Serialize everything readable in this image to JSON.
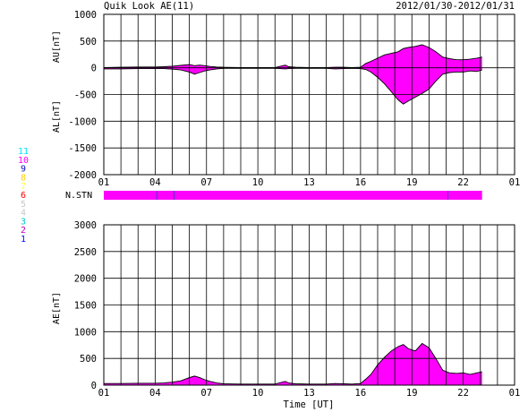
{
  "header": {
    "title": "Quik Look AE(11)",
    "date_range": "2012/01/30-2012/01/31"
  },
  "colors": {
    "fill": "#ff00ff",
    "line": "#000000",
    "grid": "#000000",
    "bg": "#ffffff"
  },
  "legend": {
    "items": [
      {
        "label": "11",
        "color": "#00e5ff"
      },
      {
        "label": "10",
        "color": "#ff00ff"
      },
      {
        "label": "9",
        "color": "#1010c0"
      },
      {
        "label": "8",
        "color": "#ffd000"
      },
      {
        "label": "7",
        "color": "#ffff40"
      },
      {
        "label": "6",
        "color": "#ff0000"
      },
      {
        "label": "5",
        "color": "#c8c8c8"
      },
      {
        "label": "4",
        "color": "#c8c8c8"
      },
      {
        "label": "3",
        "color": "#00c8c8"
      },
      {
        "label": "2",
        "color": "#c000c0"
      },
      {
        "label": "1",
        "color": "#0000ff"
      }
    ]
  },
  "stn_label": "N.STN",
  "stn_bar": {
    "start_ut": 1,
    "end_ut": 23.1,
    "markers_ut": [
      4.1,
      5.1,
      21.1
    ]
  },
  "xlabel": "Time [UT]",
  "chart_data": [
    {
      "type": "area",
      "name": "AU/AL panel",
      "ylabel_upper": "AU[nT]",
      "ylabel_lower": "AL[nT]",
      "ylim": [
        -2000,
        1000
      ],
      "yticks": [
        1000,
        500,
        0,
        -500,
        -1000,
        -1500,
        -2000
      ],
      "xlim": [
        1,
        25
      ],
      "xticks": [
        "01",
        "04",
        "07",
        "10",
        "13",
        "16",
        "19",
        "22",
        "01"
      ],
      "grid": true,
      "x_ut": [
        1.0,
        2.0,
        3.0,
        4.0,
        4.5,
        5.0,
        5.5,
        6.0,
        6.3,
        6.6,
        6.9,
        7.2,
        7.6,
        8.0,
        9.0,
        10.0,
        11.0,
        11.6,
        11.8,
        12.2,
        13.0,
        14.0,
        14.5,
        15.0,
        15.5,
        16.0,
        16.3,
        16.6,
        17.0,
        17.4,
        17.8,
        18.2,
        18.5,
        18.8,
        19.2,
        19.6,
        20.0,
        20.4,
        20.8,
        21.2,
        21.6,
        22.0,
        22.4,
        22.8,
        23.1
      ],
      "au": [
        5,
        10,
        15,
        15,
        20,
        30,
        45,
        60,
        40,
        50,
        40,
        25,
        15,
        10,
        5,
        5,
        5,
        50,
        20,
        10,
        5,
        5,
        10,
        10,
        5,
        10,
        80,
        120,
        180,
        240,
        270,
        300,
        360,
        380,
        400,
        430,
        380,
        300,
        200,
        170,
        150,
        150,
        160,
        180,
        200
      ],
      "al": [
        -20,
        -20,
        -15,
        -15,
        -15,
        -25,
        -40,
        -80,
        -120,
        -90,
        -60,
        -40,
        -20,
        -10,
        -10,
        -10,
        -10,
        -20,
        -15,
        -10,
        -10,
        -10,
        -20,
        -15,
        -10,
        -15,
        -30,
        -80,
        -180,
        -300,
        -450,
        -600,
        -680,
        -620,
        -550,
        -480,
        -400,
        -250,
        -120,
        -90,
        -80,
        -80,
        -60,
        -70,
        -40
      ]
    },
    {
      "type": "area",
      "name": "AE panel",
      "ylabel": "AE[nT]",
      "ylim": [
        0,
        3000
      ],
      "yticks": [
        3000,
        2500,
        2000,
        1500,
        1000,
        500,
        0
      ],
      "xlim": [
        1,
        25
      ],
      "xticks": [
        "01",
        "04",
        "07",
        "10",
        "13",
        "16",
        "19",
        "22",
        "01"
      ],
      "grid": true,
      "x_ut": [
        1.0,
        2.0,
        3.0,
        4.0,
        4.5,
        5.0,
        5.5,
        6.0,
        6.3,
        6.6,
        6.9,
        7.2,
        7.6,
        8.0,
        9.0,
        10.0,
        11.0,
        11.6,
        11.8,
        12.2,
        13.0,
        14.0,
        14.5,
        15.0,
        15.5,
        16.0,
        16.3,
        16.6,
        17.0,
        17.4,
        17.8,
        18.2,
        18.5,
        18.8,
        19.2,
        19.6,
        20.0,
        20.4,
        20.8,
        21.2,
        21.6,
        22.0,
        22.4,
        22.8,
        23.1
      ],
      "ae": [
        30,
        30,
        35,
        35,
        40,
        55,
        80,
        140,
        170,
        140,
        100,
        70,
        40,
        25,
        20,
        20,
        20,
        70,
        40,
        25,
        20,
        20,
        30,
        25,
        20,
        30,
        110,
        200,
        380,
        520,
        640,
        720,
        760,
        680,
        640,
        780,
        700,
        500,
        280,
        230,
        220,
        230,
        200,
        230,
        250
      ]
    }
  ]
}
